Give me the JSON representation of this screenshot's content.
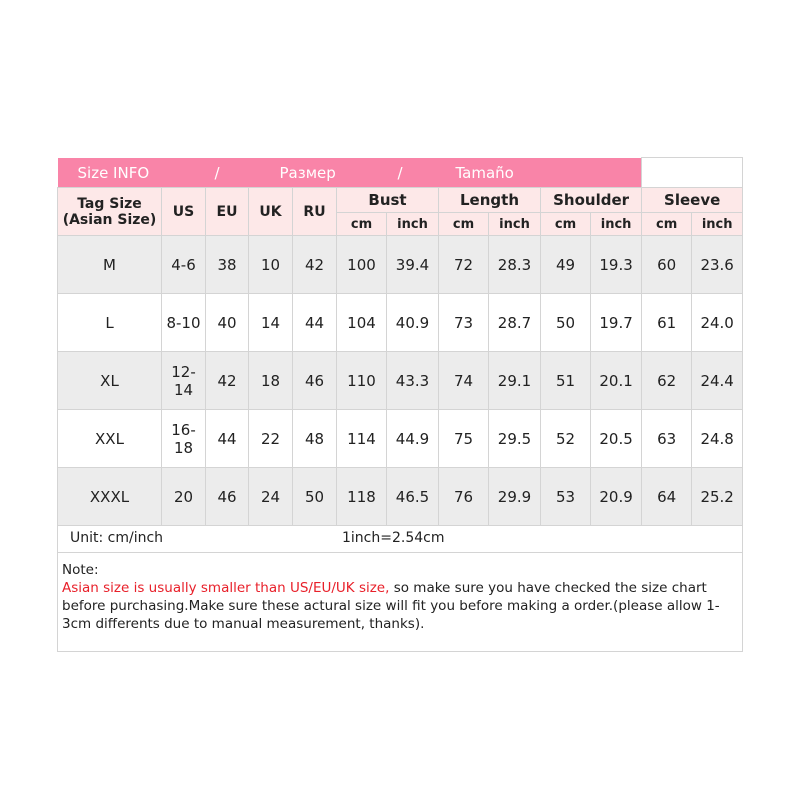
{
  "title_bar": {
    "english": "Size INFO",
    "sep1": "/",
    "russian": "Размер",
    "sep2": "/",
    "spanish": "Tamaño"
  },
  "header": {
    "tag_size": "Tag Size",
    "tag_size_sub": "(Asian Size)",
    "us": "US",
    "eu": "EU",
    "uk": "UK",
    "ru": "RU",
    "groups": [
      "Bust",
      "Length",
      "Shoulder",
      "Sleeve"
    ],
    "cm": "cm",
    "inch": "inch"
  },
  "rows": [
    [
      "M",
      "4-6",
      "38",
      "10",
      "42",
      "100",
      "39.4",
      "72",
      "28.3",
      "49",
      "19.3",
      "60",
      "23.6"
    ],
    [
      "L",
      "8-10",
      "40",
      "14",
      "44",
      "104",
      "40.9",
      "73",
      "28.7",
      "50",
      "19.7",
      "61",
      "24.0"
    ],
    [
      "XL",
      "12-14",
      "42",
      "18",
      "46",
      "110",
      "43.3",
      "74",
      "29.1",
      "51",
      "20.1",
      "62",
      "24.4"
    ],
    [
      "XXL",
      "16-18",
      "44",
      "22",
      "48",
      "114",
      "44.9",
      "75",
      "29.5",
      "52",
      "20.5",
      "63",
      "24.8"
    ],
    [
      "XXXL",
      "20",
      "46",
      "24",
      "50",
      "118",
      "46.5",
      "76",
      "29.9",
      "53",
      "20.9",
      "64",
      "25.2"
    ]
  ],
  "unit": {
    "label": "Unit: cm/inch",
    "conversion": "1inch=2.54cm"
  },
  "note": {
    "heading": "Note:",
    "warning": "Asian size is usually smaller than US/EU/UK size,",
    "body": " so make sure you have checked the size chart before purchasing.Make sure these actural size will fit you before making a order.(please allow 1-3cm differents due to manual measurement, thanks)."
  },
  "colors": {
    "title_pink": "#f984a8",
    "header_pink": "#fde8e8",
    "row_gray": "#ececec",
    "warning_red": "#e8202a"
  }
}
